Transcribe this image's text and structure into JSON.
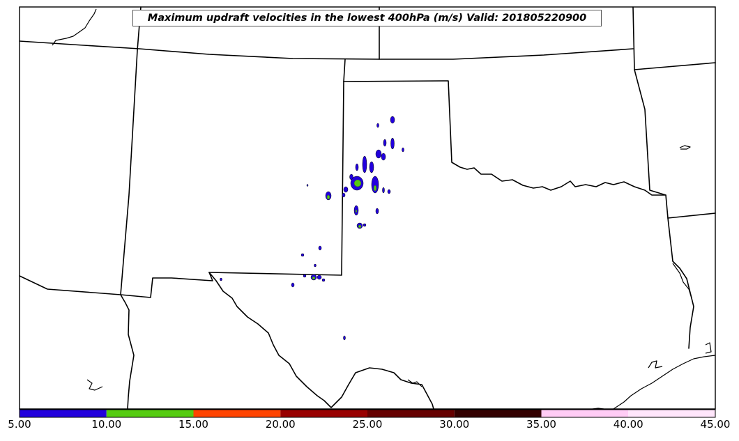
{
  "title": "Maximum updraft velocities in the lowest 400hPa (m/s) Valid: 201805220900",
  "colorbar": {
    "ticks": [
      "5.00",
      "10.00",
      "15.00",
      "20.00",
      "25.00",
      "30.00",
      "35.00",
      "40.00",
      "45.00"
    ],
    "bins": [
      {
        "min": 5,
        "max": 10,
        "color": "#2200dd"
      },
      {
        "min": 10,
        "max": 15,
        "color": "#55cc11"
      },
      {
        "min": 15,
        "max": 20,
        "color": "#ff4400"
      },
      {
        "min": 20,
        "max": 25,
        "color": "#990000"
      },
      {
        "min": 25,
        "max": 30,
        "color": "#660000"
      },
      {
        "min": 30,
        "max": 35,
        "color": "#330000"
      },
      {
        "min": 35,
        "max": 40,
        "color": "#ffccf5"
      },
      {
        "min": 40,
        "max": 45,
        "color": "#ffe6fb"
      }
    ]
  },
  "colors": {
    "low_updraft": "#2200dd",
    "mid_updraft": "#55cc11",
    "border": "#000000"
  }
}
